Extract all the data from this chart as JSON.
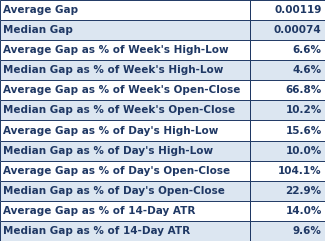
{
  "rows": [
    [
      "Average Gap",
      "0.00119"
    ],
    [
      "Median Gap",
      "0.00074"
    ],
    [
      "Average Gap as % of Week's High-Low",
      "6.6%"
    ],
    [
      "Median Gap as % of Week's High-Low",
      "4.6%"
    ],
    [
      "Average Gap as % of Week's Open-Close",
      "66.8%"
    ],
    [
      "Median Gap as % of Week's Open-Close",
      "10.2%"
    ],
    [
      "Average Gap as % of Day's High-Low",
      "15.6%"
    ],
    [
      "Median Gap as % of Day's High-Low",
      "10.0%"
    ],
    [
      "Average Gap as % of Day's Open-Close",
      "104.1%"
    ],
    [
      "Median Gap as % of Day's Open-Close",
      "22.9%"
    ],
    [
      "Average Gap as % of 14-Day ATR",
      "14.0%"
    ],
    [
      "Median Gap as % of 14-Day ATR",
      "9.6%"
    ]
  ],
  "color_white": "#ffffff",
  "color_blue": "#dce6f1",
  "text_color": "#1f3864",
  "edge_color": "#1f3864",
  "font_size": 7.5,
  "col_split": 0.77
}
